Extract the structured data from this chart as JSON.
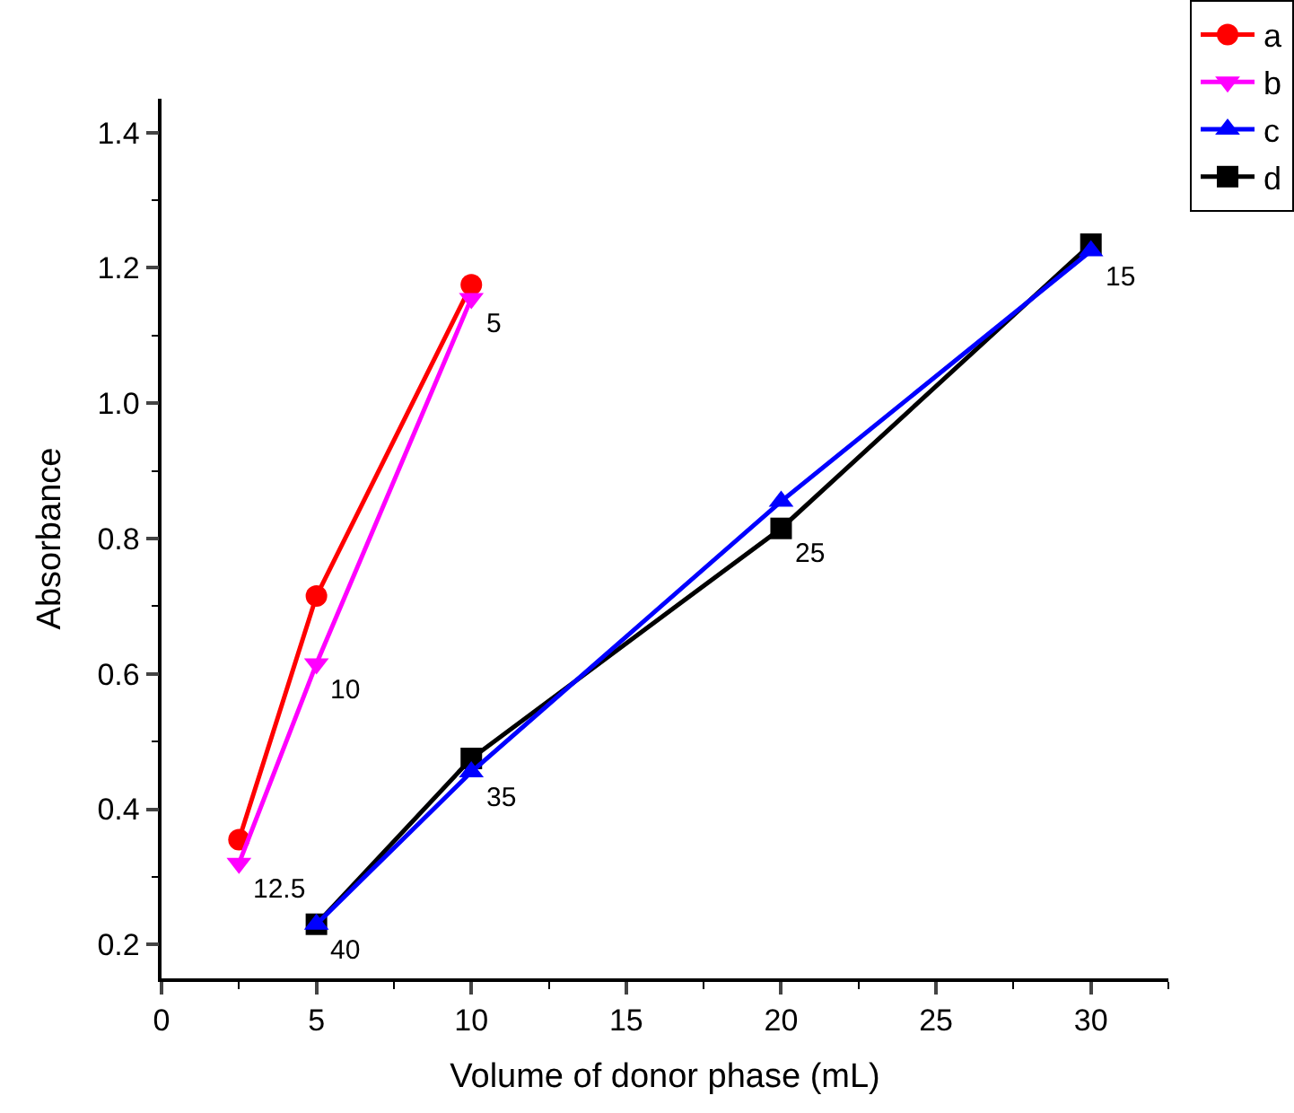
{
  "chart_data": {
    "type": "line",
    "xlabel": "Volume of donor phase (mL)",
    "ylabel": "Absorbance",
    "xlim": [
      0,
      32.5
    ],
    "xticks": [
      0,
      5,
      10,
      15,
      20,
      25,
      30
    ],
    "ylim": [
      0.15,
      1.45
    ],
    "yticks": [
      0.2,
      0.4,
      0.6,
      0.8,
      {
        "value": 1,
        "label": "1.0"
      },
      1.2,
      1.4
    ],
    "legend": "top right",
    "series": [
      {
        "name": "a",
        "color": "#ff0000",
        "marker": "circle",
        "x": [
          2.5,
          5,
          10
        ],
        "values": [
          0.355,
          0.715,
          1.175
        ]
      },
      {
        "name": "b",
        "color": "#ff00ff",
        "marker": "triangle-down",
        "x": [
          2.5,
          5,
          10
        ],
        "values": [
          0.32,
          0.615,
          1.155
        ]
      },
      {
        "name": "c",
        "color": "#0000ff",
        "marker": "triangle",
        "x": [
          5,
          10,
          20,
          30
        ],
        "values": [
          0.23,
          0.455,
          0.855,
          1.225
        ]
      },
      {
        "name": "d",
        "color": "#000000",
        "marker": "square",
        "x": [
          5,
          10,
          20,
          30
        ],
        "values": [
          0.23,
          0.475,
          0.815,
          1.235
        ]
      }
    ],
    "annotations": [
      {
        "text": "12.5",
        "x": 2.5,
        "y": 0.32
      },
      {
        "text": "10",
        "x": 5,
        "y": 0.615
      },
      {
        "text": "5",
        "x": 10,
        "y": 1.155
      },
      {
        "text": "40",
        "x": 5,
        "y": 0.23
      },
      {
        "text": "35",
        "x": 10,
        "y": 0.455
      },
      {
        "text": "25",
        "x": 20,
        "y": 0.815
      },
      {
        "text": "15",
        "x": 30,
        "y": 1.225
      }
    ]
  }
}
